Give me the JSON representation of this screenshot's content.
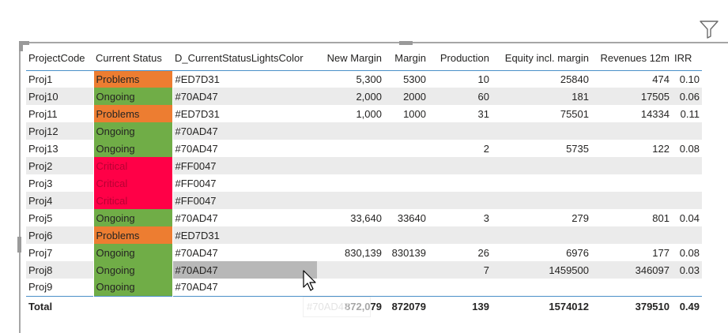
{
  "colors": {
    "problems": "#ED7D31",
    "ongoing": "#70AD47",
    "critical": "#FF0047",
    "header_rule": "#4a90c8",
    "zebra": "#ebebeb"
  },
  "toolbar": {
    "filter_icon": "filter-icon"
  },
  "table": {
    "columns": [
      "ProjectCode",
      "Current Status",
      "D_CurrentStatusLightsColor",
      "New Margin",
      "Margin",
      "Production",
      "Equity incl. margin",
      "Revenues 12m",
      "IRR"
    ],
    "rows": [
      [
        "Proj1",
        "Problems",
        "#ED7D31",
        "5,300",
        "5300",
        "10",
        "25840",
        "474",
        "0.10"
      ],
      [
        "Proj10",
        "Ongoing",
        "#70AD47",
        "2,000",
        "2000",
        "60",
        "181",
        "17505",
        "0.06"
      ],
      [
        "Proj11",
        "Problems",
        "#ED7D31",
        "1,000",
        "1000",
        "31",
        "75501",
        "14334",
        "0.11"
      ],
      [
        "Proj12",
        "Ongoing",
        "#70AD47",
        "",
        "",
        "",
        "",
        "",
        ""
      ],
      [
        "Proj13",
        "Ongoing",
        "#70AD47",
        "",
        "",
        "2",
        "5735",
        "122",
        "0.08"
      ],
      [
        "Proj2",
        "Critical",
        "#FF0047",
        "",
        "",
        "",
        "",
        "",
        ""
      ],
      [
        "Proj3",
        "Critical",
        "#FF0047",
        "",
        "",
        "",
        "",
        "",
        ""
      ],
      [
        "Proj4",
        "Critical",
        "#FF0047",
        "",
        "",
        "",
        "",
        "",
        ""
      ],
      [
        "Proj5",
        "Ongoing",
        "#70AD47",
        "33,640",
        "33640",
        "3",
        "279",
        "801",
        "0.04"
      ],
      [
        "Proj6",
        "Problems",
        "#ED7D31",
        "",
        "",
        "",
        "",
        "",
        ""
      ],
      [
        "Proj7",
        "Ongoing",
        "#70AD47",
        "830,139",
        "830139",
        "26",
        "6976",
        "177",
        "0.08"
      ],
      [
        "Proj8",
        "Ongoing",
        "#70AD47",
        "",
        "",
        "7",
        "1459500",
        "346097",
        "0.03"
      ],
      [
        "Proj9",
        "Ongoing",
        "#70AD47",
        "",
        "",
        "",
        "",
        "",
        ""
      ]
    ],
    "total": [
      "Total",
      "",
      "",
      "872,079",
      "872079",
      "139",
      "1574012",
      "379510",
      "0.49"
    ]
  },
  "tooltip": {
    "text": "#70AD47"
  }
}
